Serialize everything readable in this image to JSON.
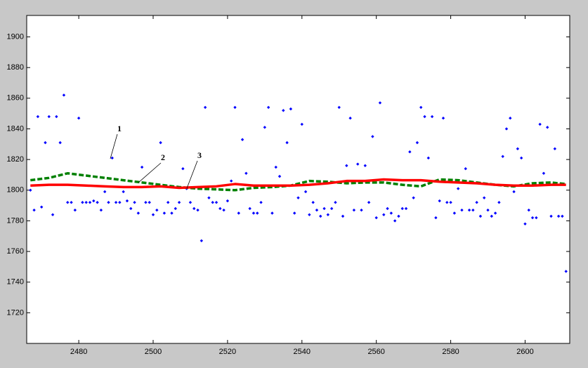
{
  "chart_data": {
    "type": "scatter",
    "annotations": [
      "1",
      "2",
      "3"
    ],
    "xlim": [
      2466,
      2612
    ],
    "ylim": [
      1700,
      1914
    ],
    "xticks": [
      2480,
      2500,
      2520,
      2540,
      2560,
      2580,
      2600
    ],
    "yticks": [
      1720,
      1740,
      1760,
      1780,
      1800,
      1820,
      1840,
      1860,
      1880,
      1900
    ],
    "grid": false,
    "series": [
      {
        "marker": "diamond",
        "color": "#0000ff",
        "x": [
          2467,
          2468,
          2469,
          2470,
          2471,
          2472,
          2473,
          2474,
          2475,
          2476,
          2477,
          2478,
          2479,
          2480,
          2481,
          2482,
          2483,
          2484,
          2485,
          2486,
          2487,
          2488,
          2489,
          2490,
          2491,
          2492,
          2493,
          2494,
          2495,
          2496,
          2497,
          2498,
          2499,
          2500,
          2501,
          2502,
          2503,
          2504,
          2505,
          2506,
          2507,
          2508,
          2509,
          2510,
          2511,
          2512,
          2513,
          2514,
          2515,
          2516,
          2517,
          2518,
          2519,
          2520,
          2521,
          2522,
          2523,
          2524,
          2525,
          2526,
          2527,
          2528,
          2529,
          2530,
          2531,
          2532,
          2533,
          2534,
          2535,
          2536,
          2537,
          2538,
          2539,
          2540,
          2541,
          2542,
          2543,
          2544,
          2545,
          2546,
          2547,
          2548,
          2549,
          2550,
          2551,
          2552,
          2553,
          2554,
          2555,
          2556,
          2557,
          2558,
          2559,
          2560,
          2561,
          2562,
          2563,
          2564,
          2565,
          2566,
          2567,
          2568,
          2569,
          2570,
          2571,
          2572,
          2573,
          2574,
          2575,
          2576,
          2577,
          2578,
          2579,
          2580,
          2581,
          2582,
          2583,
          2584,
          2585,
          2586,
          2587,
          2588,
          2589,
          2590,
          2591,
          2592,
          2593,
          2594,
          2595,
          2596,
          2597,
          2598,
          2599,
          2600,
          2601,
          2602,
          2603,
          2604,
          2605,
          2606,
          2607,
          2608,
          2609,
          2610,
          2611
        ],
        "values": [
          1800,
          1787,
          1848,
          1789,
          1831,
          1848,
          1784,
          1848,
          1831,
          1862,
          1792,
          1792,
          1787,
          1847,
          1792,
          1792,
          1792,
          1793,
          1792,
          1787,
          1799,
          1792,
          1821,
          1792,
          1792,
          1799,
          1793,
          1788,
          1792,
          1785,
          1815,
          1792,
          1792,
          1784,
          1787,
          1831,
          1785,
          1792,
          1785,
          1788,
          1792,
          1814,
          1801,
          1792,
          1788,
          1787,
          1767,
          1854,
          1795,
          1792,
          1792,
          1788,
          1787,
          1793,
          1806,
          1854,
          1785,
          1833,
          1811,
          1788,
          1785,
          1785,
          1792,
          1841,
          1854,
          1785,
          1815,
          1809,
          1852,
          1831,
          1853,
          1785,
          1795,
          1843,
          1799,
          1784,
          1792,
          1787,
          1783,
          1788,
          1784,
          1788,
          1792,
          1854,
          1783,
          1816,
          1847,
          1787,
          1817,
          1787,
          1816,
          1792,
          1835,
          1782,
          1857,
          1784,
          1788,
          1785,
          1780,
          1783,
          1788,
          1788,
          1825,
          1795,
          1831,
          1854,
          1848,
          1821,
          1848,
          1782,
          1793,
          1847,
          1792,
          1792,
          1785,
          1801,
          1787,
          1814,
          1787,
          1787,
          1792,
          1783,
          1795,
          1787,
          1783,
          1785,
          1792,
          1822,
          1840,
          1847,
          1799,
          1827,
          1821,
          1778,
          1787,
          1782,
          1782,
          1843,
          1811,
          1841,
          1783,
          1827,
          1783,
          1783,
          1747
        ]
      },
      {
        "line": "dashed",
        "color": "#008000",
        "x": [
          2467,
          2472,
          2477,
          2482,
          2487,
          2492,
          2497,
          2502,
          2507,
          2512,
          2517,
          2522,
          2527,
          2532,
          2537,
          2542,
          2547,
          2552,
          2557,
          2562,
          2567,
          2572,
          2577,
          2582,
          2587,
          2592,
          2597,
          2602,
          2607,
          2611
        ],
        "values": [
          1806.5,
          1808,
          1811,
          1809.5,
          1808,
          1806.5,
          1805,
          1803.5,
          1802,
          1801,
          1800.5,
          1800,
          1801.5,
          1802,
          1803,
          1806,
          1805.5,
          1804.5,
          1805,
          1805,
          1803.5,
          1802.5,
          1807,
          1806.5,
          1805,
          1803.5,
          1802.5,
          1804.5,
          1805,
          1804
        ]
      },
      {
        "line": "solid",
        "color": "#ff0000",
        "x": [
          2467,
          2472,
          2477,
          2482,
          2487,
          2492,
          2497,
          2502,
          2507,
          2512,
          2517,
          2522,
          2527,
          2532,
          2537,
          2542,
          2547,
          2552,
          2557,
          2562,
          2567,
          2572,
          2577,
          2582,
          2587,
          2592,
          2597,
          2602,
          2607,
          2611
        ],
        "values": [
          1803,
          1803.5,
          1803.5,
          1803,
          1802.5,
          1802,
          1802,
          1802.5,
          1801.5,
          1802,
          1802.5,
          1804,
          1803,
          1803,
          1803,
          1803.5,
          1804.5,
          1806,
          1806,
          1807,
          1806.5,
          1806.5,
          1805.5,
          1805,
          1804.5,
          1803.5,
          1803,
          1803,
          1803.5,
          1803.5
        ]
      }
    ]
  }
}
